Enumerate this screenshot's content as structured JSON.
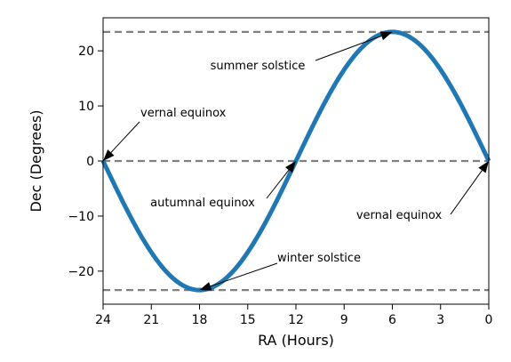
{
  "chart_data": {
    "type": "line",
    "xlabel": "RA (Hours)",
    "ylabel": "Dec (Degrees)",
    "xlim": [
      24,
      0
    ],
    "ylim": [
      -26,
      26
    ],
    "x_reversed": true,
    "xticks": [
      24,
      21,
      18,
      15,
      12,
      9,
      6,
      3,
      0
    ],
    "yticks": [
      -20,
      -10,
      0,
      10,
      20
    ],
    "xtick_labels": [
      "24",
      "21",
      "18",
      "15",
      "12",
      "9",
      "6",
      "3",
      "0"
    ],
    "ytick_labels": [
      "−20",
      "−10",
      "0",
      "10",
      "20"
    ],
    "grid": false,
    "series": [
      {
        "color": "#1f77b4",
        "x": [
          24,
          23,
          22,
          21,
          20,
          19,
          18,
          17,
          16,
          15,
          14,
          13,
          12,
          11,
          10,
          9,
          8,
          7,
          6,
          5,
          4,
          3,
          2,
          1,
          0
        ],
        "y": [
          0,
          -6.1,
          -11.7,
          -16.6,
          -20.3,
          -22.7,
          -23.44,
          -22.7,
          -20.3,
          -16.6,
          -11.7,
          -6.1,
          0,
          6.1,
          11.7,
          16.6,
          20.3,
          22.7,
          23.44,
          22.7,
          20.3,
          16.6,
          11.7,
          6.1,
          0
        ]
      }
    ],
    "reference_lines": [
      {
        "y": 23.44,
        "color": "#808080",
        "style": "dashed"
      },
      {
        "y": 0,
        "color": "#808080",
        "style": "dashed"
      },
      {
        "y": -23.44,
        "color": "#808080",
        "style": "dashed"
      }
    ],
    "annotations": [
      {
        "text": "summer solstice",
        "point": [
          6,
          23.44
        ]
      },
      {
        "text": "vernal equinox",
        "point": [
          24,
          0
        ]
      },
      {
        "text": "autumnal equinox",
        "point": [
          12,
          0
        ]
      },
      {
        "text": "vernal equinox",
        "point": [
          0,
          0
        ]
      },
      {
        "text": "winter solstice",
        "point": [
          18,
          -23.44
        ]
      }
    ]
  }
}
